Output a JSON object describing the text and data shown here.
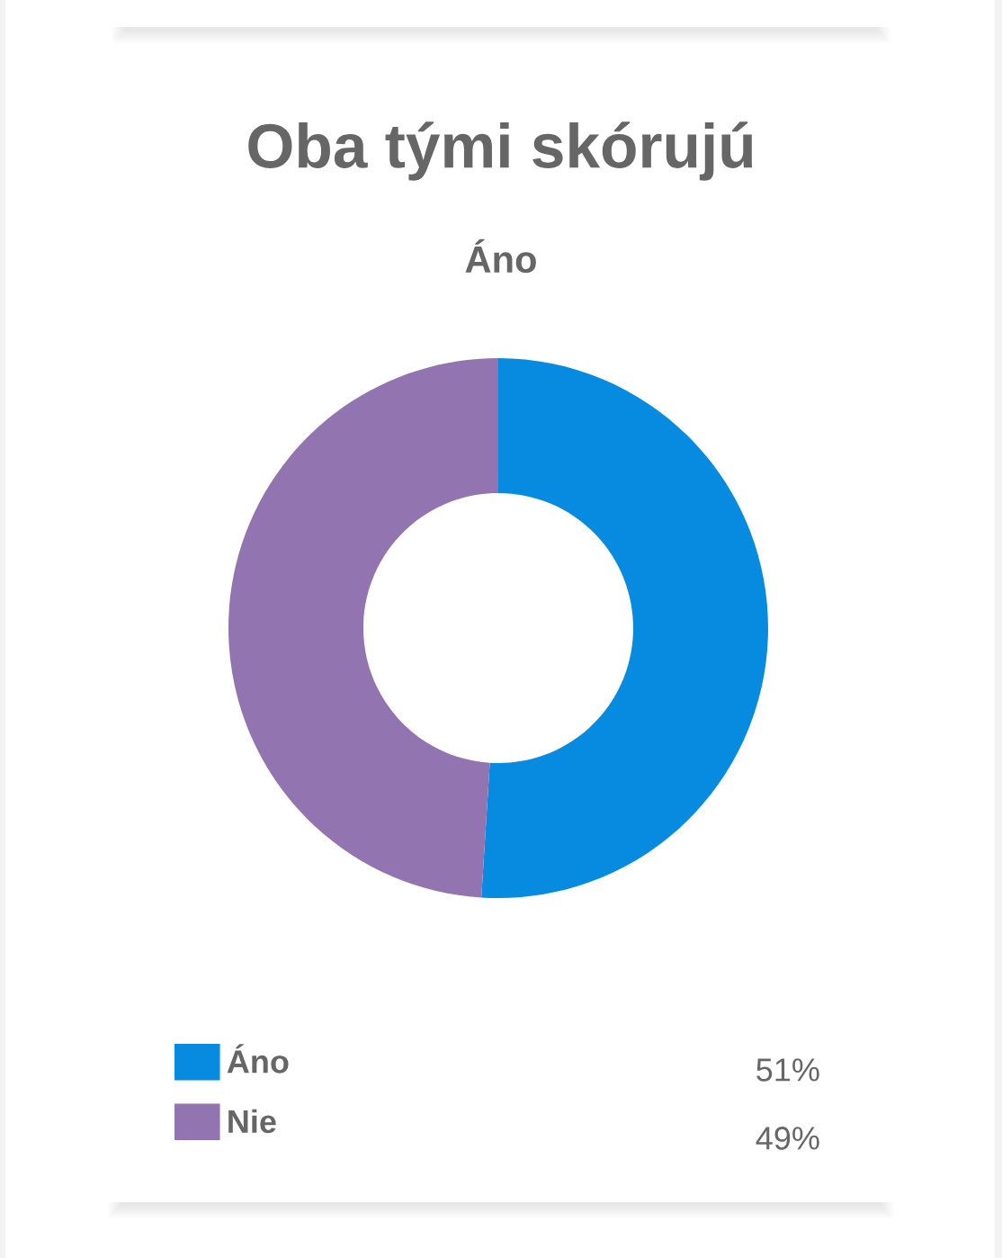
{
  "chart_data": {
    "type": "donut",
    "title": "Oba tými skórujú",
    "subtitle": "Áno",
    "categories": [
      "Áno",
      "Nie"
    ],
    "values": [
      51,
      49
    ],
    "colors": [
      "#078be0",
      "#9275b0"
    ],
    "value_labels": [
      "51%",
      "49%"
    ],
    "legend": "bottom"
  }
}
